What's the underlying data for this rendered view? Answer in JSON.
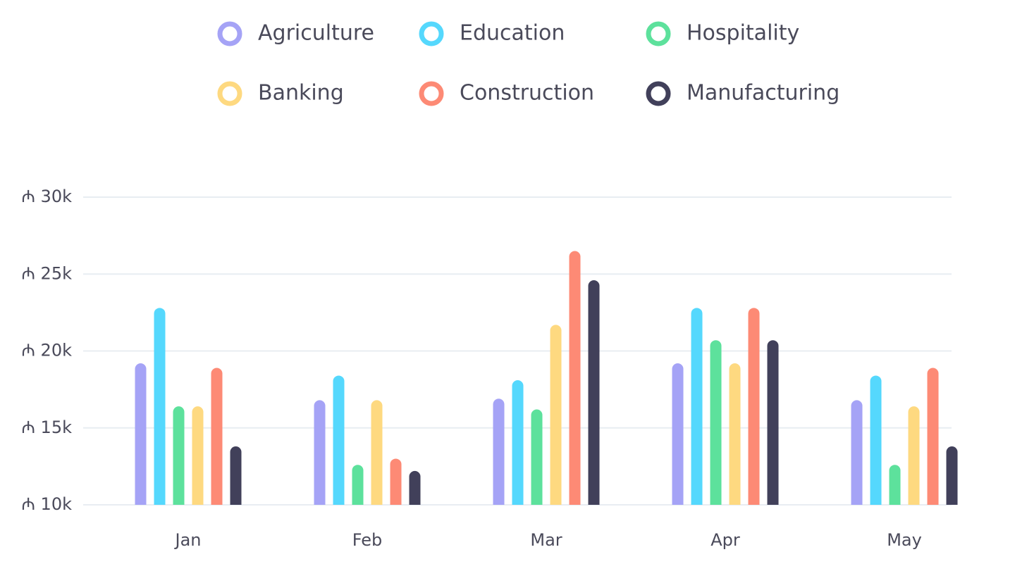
{
  "chart_data": {
    "type": "bar",
    "categories": [
      "Jan",
      "Feb",
      "Mar",
      "Apr",
      "May"
    ],
    "series": [
      {
        "name": "Agriculture",
        "color": "#a5a3f6",
        "values": [
          19200,
          16800,
          16900,
          19200,
          16800
        ]
      },
      {
        "name": "Education",
        "color": "#55d8fd",
        "values": [
          22800,
          18400,
          18100,
          22800,
          18400
        ]
      },
      {
        "name": "Hospitality",
        "color": "#5de19c",
        "values": [
          16400,
          12600,
          16200,
          20700,
          12600
        ]
      },
      {
        "name": "Banking",
        "color": "#fed980",
        "values": [
          16400,
          16800,
          21700,
          19200,
          16400
        ]
      },
      {
        "name": "Construction",
        "color": "#fd8a75",
        "values": [
          18900,
          13000,
          26500,
          22800,
          18900
        ]
      },
      {
        "name": "Manufacturing",
        "color": "#41405a",
        "values": [
          13800,
          12200,
          24600,
          20700,
          13800
        ]
      }
    ],
    "ylim": [
      10000,
      30000
    ],
    "yticks": [
      {
        "value": 10000,
        "label": "₼ 10k"
      },
      {
        "value": 15000,
        "label": "₼ 15k"
      },
      {
        "value": 20000,
        "label": "₼ 20k"
      },
      {
        "value": 25000,
        "label": "₼ 25k"
      },
      {
        "value": 30000,
        "label": "₼ 30k"
      }
    ],
    "grid": true
  }
}
